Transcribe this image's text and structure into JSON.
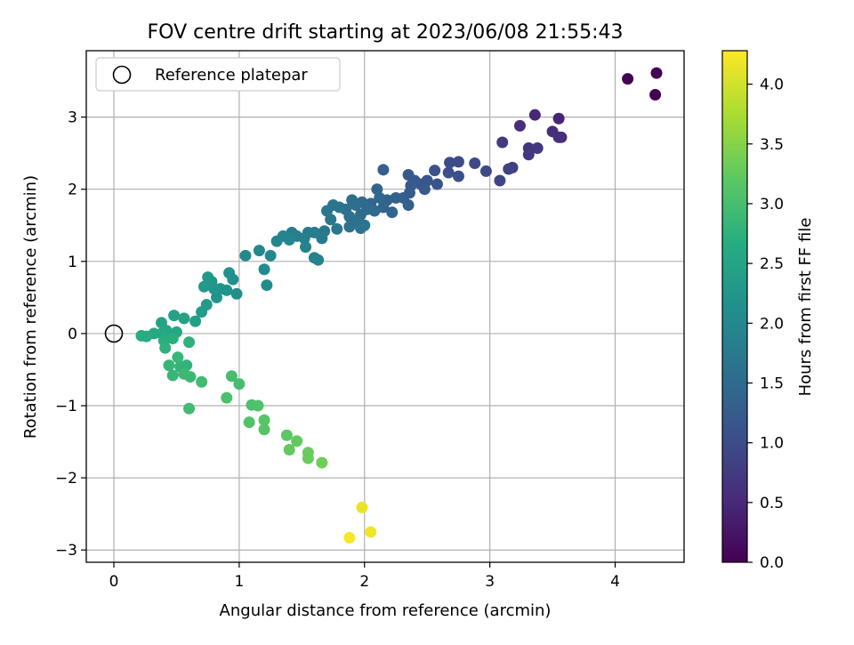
{
  "chart_data": {
    "type": "scatter",
    "title": "FOV centre drift starting at 2023/06/08 21:55:43",
    "xlabel": "Angular distance from reference (arcmin)",
    "ylabel": "Rotation from reference (arcmin)",
    "xlim": [
      -0.22,
      4.55
    ],
    "ylim": [
      -3.17,
      3.92
    ],
    "xticks": [
      0,
      1,
      2,
      3,
      4
    ],
    "xtick_labels": [
      "0",
      "1",
      "2",
      "3",
      "4"
    ],
    "yticks": [
      -3,
      -2,
      -1,
      0,
      1,
      2,
      3
    ],
    "ytick_labels": [
      "−3",
      "−2",
      "−1",
      "0",
      "1",
      "2",
      "3"
    ],
    "grid": true,
    "legend": {
      "position": "top-left",
      "entries": [
        "Reference platepar"
      ]
    },
    "reference_point": {
      "x": 0,
      "y": 0,
      "label": "Reference platepar"
    },
    "colorbar": {
      "label": "Hours from first FF file",
      "colormap": "viridis",
      "range": [
        0.0,
        4.28
      ],
      "ticks": [
        0.0,
        0.5,
        1.0,
        1.5,
        2.0,
        2.5,
        3.0,
        3.5,
        4.0
      ],
      "tick_labels": [
        "0.0",
        "0.5",
        "1.0",
        "1.5",
        "2.0",
        "2.5",
        "3.0",
        "3.5",
        "4.0"
      ]
    },
    "points": [
      [
        4.1,
        3.53,
        0.0
      ],
      [
        4.33,
        3.61,
        0.0
      ],
      [
        4.32,
        3.31,
        0.0
      ],
      [
        3.55,
        2.98,
        0.45
      ],
      [
        3.36,
        3.03,
        0.5
      ],
      [
        3.5,
        2.8,
        0.55
      ],
      [
        3.57,
        2.72,
        0.55
      ],
      [
        3.55,
        2.72,
        0.6
      ],
      [
        3.24,
        2.88,
        0.6
      ],
      [
        3.31,
        2.57,
        0.65
      ],
      [
        3.38,
        2.57,
        0.7
      ],
      [
        3.31,
        2.48,
        0.7
      ],
      [
        3.1,
        2.65,
        0.75
      ],
      [
        3.18,
        2.3,
        0.8
      ],
      [
        3.15,
        2.28,
        0.85
      ],
      [
        3.08,
        2.12,
        0.9
      ],
      [
        2.97,
        2.25,
        0.95
      ],
      [
        2.88,
        2.36,
        0.95
      ],
      [
        2.75,
        2.38,
        1.0
      ],
      [
        2.68,
        2.37,
        1.0
      ],
      [
        2.75,
        2.18,
        1.05
      ],
      [
        2.67,
        2.23,
        1.05
      ],
      [
        2.56,
        2.26,
        1.1
      ],
      [
        2.58,
        2.07,
        1.1
      ],
      [
        2.5,
        2.12,
        1.15
      ],
      [
        2.45,
        2.07,
        1.15
      ],
      [
        2.48,
        2.0,
        1.2
      ],
      [
        2.4,
        2.12,
        1.2
      ],
      [
        2.35,
        2.2,
        1.2
      ],
      [
        2.37,
        2.05,
        1.25
      ],
      [
        2.36,
        1.95,
        1.25
      ],
      [
        2.31,
        1.88,
        1.3
      ],
      [
        2.35,
        1.78,
        1.3
      ],
      [
        2.25,
        1.88,
        1.35
      ],
      [
        2.18,
        1.85,
        1.35
      ],
      [
        2.15,
        2.27,
        1.3
      ],
      [
        2.22,
        1.68,
        1.4
      ],
      [
        2.15,
        1.75,
        1.4
      ],
      [
        2.1,
        2.0,
        1.4
      ],
      [
        2.12,
        1.88,
        1.45
      ],
      [
        2.05,
        1.8,
        1.45
      ],
      [
        2.08,
        1.7,
        1.5
      ],
      [
        2.02,
        1.72,
        1.5
      ],
      [
        1.97,
        1.65,
        1.5
      ],
      [
        1.98,
        1.82,
        1.5
      ],
      [
        1.93,
        1.78,
        1.55
      ],
      [
        1.9,
        1.85,
        1.55
      ],
      [
        1.85,
        1.72,
        1.55
      ],
      [
        1.88,
        1.62,
        1.6
      ],
      [
        1.94,
        1.55,
        1.6
      ],
      [
        1.97,
        1.46,
        1.6
      ],
      [
        1.88,
        1.48,
        1.6
      ],
      [
        2.0,
        1.5,
        1.65
      ],
      [
        1.8,
        1.75,
        1.65
      ],
      [
        1.75,
        1.78,
        1.65
      ],
      [
        1.7,
        1.7,
        1.7
      ],
      [
        1.73,
        1.58,
        1.7
      ],
      [
        1.78,
        1.45,
        1.7
      ],
      [
        1.68,
        1.42,
        1.75
      ],
      [
        1.66,
        1.32,
        1.75
      ],
      [
        1.6,
        1.4,
        1.8
      ],
      [
        1.55,
        1.4,
        1.8
      ],
      [
        1.52,
        1.32,
        1.85
      ],
      [
        1.42,
        1.4,
        1.85
      ],
      [
        1.46,
        1.35,
        1.85
      ],
      [
        1.53,
        1.2,
        1.9
      ],
      [
        1.6,
        1.05,
        1.9
      ],
      [
        1.63,
        1.02,
        1.9
      ],
      [
        1.4,
        1.3,
        1.95
      ],
      [
        1.35,
        1.35,
        1.95
      ],
      [
        1.3,
        1.28,
        1.95
      ],
      [
        1.25,
        1.08,
        2.0
      ],
      [
        1.16,
        1.15,
        2.0
      ],
      [
        1.05,
        1.08,
        2.0
      ],
      [
        1.2,
        0.89,
        2.05
      ],
      [
        1.22,
        0.67,
        2.05
      ],
      [
        0.98,
        0.55,
        2.1
      ],
      [
        0.95,
        0.75,
        2.1
      ],
      [
        0.92,
        0.84,
        2.15
      ],
      [
        0.9,
        0.6,
        2.15
      ],
      [
        0.85,
        0.62,
        2.2
      ],
      [
        0.82,
        0.5,
        2.2
      ],
      [
        0.8,
        0.62,
        2.25
      ],
      [
        0.78,
        0.72,
        2.25
      ],
      [
        0.75,
        0.78,
        2.3
      ],
      [
        0.72,
        0.65,
        2.3
      ],
      [
        0.74,
        0.4,
        2.35
      ],
      [
        0.7,
        0.3,
        2.35
      ],
      [
        0.65,
        0.17,
        2.4
      ],
      [
        0.56,
        0.21,
        2.45
      ],
      [
        0.48,
        0.25,
        2.45
      ],
      [
        0.38,
        0.15,
        2.5
      ],
      [
        0.5,
        0.02,
        2.55
      ],
      [
        0.42,
        0.04,
        2.55
      ],
      [
        0.38,
        0.0,
        2.6
      ],
      [
        0.32,
        0.0,
        2.6
      ],
      [
        0.26,
        -0.04,
        2.65
      ],
      [
        0.22,
        -0.03,
        2.65
      ],
      [
        0.4,
        -0.1,
        2.7
      ],
      [
        0.47,
        -0.07,
        2.7
      ],
      [
        0.41,
        -0.2,
        2.75
      ],
      [
        0.6,
        -0.12,
        2.75
      ],
      [
        0.58,
        -0.44,
        2.8
      ],
      [
        0.53,
        -0.46,
        2.8
      ],
      [
        0.44,
        -0.44,
        2.85
      ],
      [
        0.51,
        -0.33,
        2.85
      ],
      [
        0.47,
        -0.58,
        2.85
      ],
      [
        0.56,
        -0.56,
        2.9
      ],
      [
        0.61,
        -0.6,
        2.9
      ],
      [
        0.7,
        -0.67,
        2.95
      ],
      [
        0.6,
        -1.04,
        2.95
      ],
      [
        0.94,
        -0.59,
        3.0
      ],
      [
        1.0,
        -0.7,
        3.0
      ],
      [
        0.9,
        -0.89,
        3.05
      ],
      [
        1.1,
        -0.99,
        3.05
      ],
      [
        1.15,
        -1.0,
        3.1
      ],
      [
        1.08,
        -1.23,
        3.1
      ],
      [
        1.2,
        -1.2,
        3.15
      ],
      [
        1.2,
        -1.33,
        3.15
      ],
      [
        1.38,
        -1.41,
        3.2
      ],
      [
        1.46,
        -1.49,
        3.25
      ],
      [
        1.4,
        -1.61,
        3.25
      ],
      [
        1.55,
        -1.65,
        3.3
      ],
      [
        1.55,
        -1.73,
        3.3
      ],
      [
        1.66,
        -1.79,
        3.35
      ],
      [
        1.98,
        -2.41,
        4.15
      ],
      [
        2.05,
        -2.75,
        4.2
      ],
      [
        1.88,
        -2.83,
        4.25
      ]
    ]
  }
}
